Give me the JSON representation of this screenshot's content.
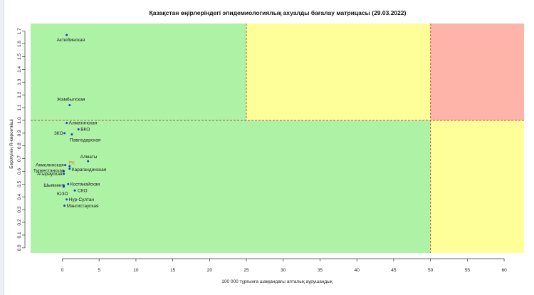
{
  "chart_data": {
    "type": "scatter",
    "title": "Қазақстан өңірлеріндегі эпидемиологиялық ахуалды бағалау матрицасы  (29.03.2022)",
    "xlabel": "100 000 тұрғынға шаққандағы апталық аурушаңдық",
    "ylabel": "Берілуінің R-көрсеткіші",
    "xlim": [
      -4.3,
      62.7
    ],
    "ylim": [
      -0.04,
      1.76
    ],
    "x_ticks": [
      0,
      5,
      10,
      15,
      20,
      25,
      30,
      35,
      40,
      45,
      50,
      55,
      60
    ],
    "y_ticks": [
      "0.0",
      "0.1",
      "0.2",
      "0.3",
      "0.4",
      "0.5",
      "0.6",
      "0.7",
      "0.8",
      "0.9",
      "1.0",
      "1.1",
      "1.2",
      "1.3",
      "1.4",
      "1.5",
      "1.6",
      "1.7"
    ],
    "thresholds": {
      "x": [
        25,
        50
      ],
      "y": 1.0
    },
    "zones": {
      "low": "#aef2a6",
      "medium": "#ffff99",
      "high": "#ffb4aa"
    },
    "point_color": "#1f3fbf",
    "points": [
      {
        "label": "Актюбинская",
        "x": 0.6,
        "y": 1.67
      },
      {
        "label": "Жамбылская",
        "x": 1.0,
        "y": 1.12
      },
      {
        "label": "Алматинская",
        "x": 0.6,
        "y": 0.98
      },
      {
        "label": "ЗКО",
        "x": 0.3,
        "y": 0.9
      },
      {
        "label": "ВКО",
        "x": 2.2,
        "y": 0.93
      },
      {
        "label": "Павлодарская",
        "x": 1.3,
        "y": 0.89
      },
      {
        "label": "Алматы",
        "x": 3.5,
        "y": 0.68
      },
      {
        "label": "Акмолинская",
        "x": 0.4,
        "y": 0.65
      },
      {
        "label": "РК",
        "x": 1.0,
        "y": 0.64,
        "highlight": true
      },
      {
        "label": "Карагандинская",
        "x": 1.0,
        "y": 0.62
      },
      {
        "label": "Туркестанская",
        "x": 0.2,
        "y": 0.6
      },
      {
        "label": "Атырауская",
        "x": 0.2,
        "y": 0.58
      },
      {
        "label": "Костанайская",
        "x": 0.8,
        "y": 0.5
      },
      {
        "label": "Шымкент",
        "x": 0.2,
        "y": 0.49
      },
      {
        "label": "ЮЗО",
        "x": 0.2,
        "y": 0.48
      },
      {
        "label": "СКО",
        "x": 1.7,
        "y": 0.45
      },
      {
        "label": "Нур-Султан",
        "x": 0.6,
        "y": 0.38
      },
      {
        "label": "Мангистауская",
        "x": 0.3,
        "y": 0.33
      }
    ]
  }
}
